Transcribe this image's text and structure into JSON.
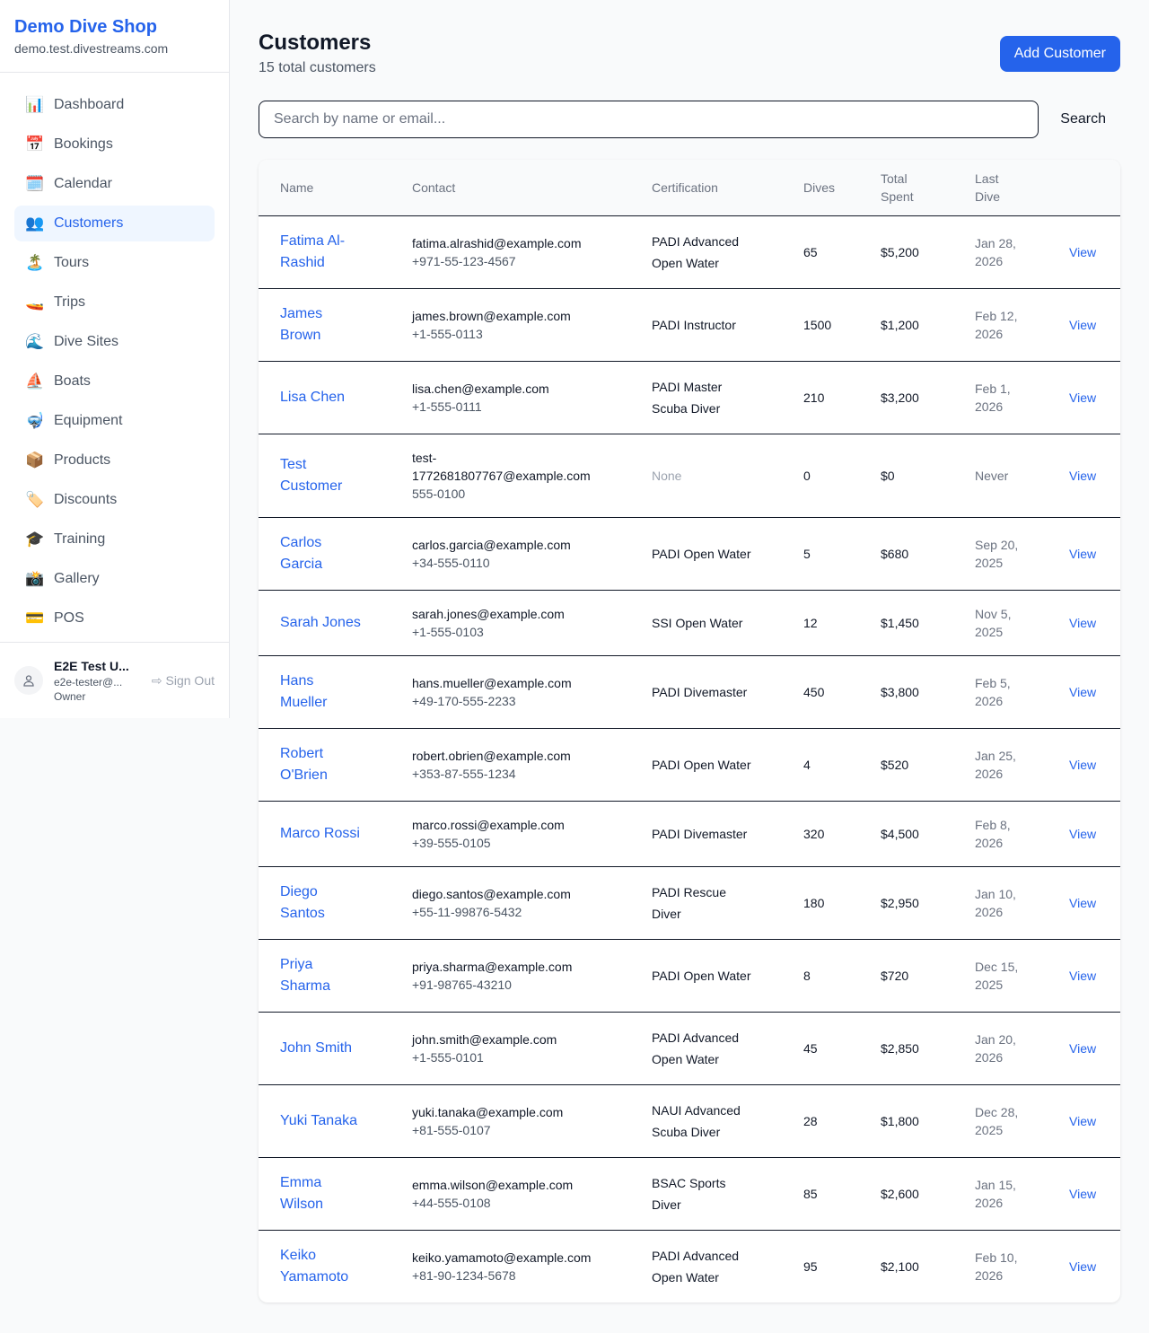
{
  "sidebar": {
    "brand": "Demo Dive Shop",
    "domain": "demo.test.divestreams.com",
    "items": [
      {
        "label": "Dashboard",
        "icon": "📊",
        "icon_name": "bar-chart-icon"
      },
      {
        "label": "Bookings",
        "icon": "📅",
        "icon_name": "calendar-date-icon"
      },
      {
        "label": "Calendar",
        "icon": "🗓️",
        "icon_name": "calendar-icon"
      },
      {
        "label": "Customers",
        "icon": "👥",
        "icon_name": "users-icon",
        "active": true
      },
      {
        "label": "Tours",
        "icon": "🏝️",
        "icon_name": "island-icon"
      },
      {
        "label": "Trips",
        "icon": "🚤",
        "icon_name": "boat-icon"
      },
      {
        "label": "Dive Sites",
        "icon": "🌊",
        "icon_name": "wave-icon"
      },
      {
        "label": "Boats",
        "icon": "⛵",
        "icon_name": "sailboat-icon"
      },
      {
        "label": "Equipment",
        "icon": "🤿",
        "icon_name": "diving-mask-icon"
      },
      {
        "label": "Products",
        "icon": "📦",
        "icon_name": "package-icon"
      },
      {
        "label": "Discounts",
        "icon": "🏷️",
        "icon_name": "tag-icon"
      },
      {
        "label": "Training",
        "icon": "🎓",
        "icon_name": "graduation-cap-icon"
      },
      {
        "label": "Gallery",
        "icon": "📸",
        "icon_name": "camera-icon"
      },
      {
        "label": "POS",
        "icon": "💳",
        "icon_name": "credit-card-icon"
      }
    ],
    "user": {
      "name": "E2E Test U...",
      "email": "e2e-tester@...",
      "role": "Owner",
      "sign_out": "Sign Out"
    }
  },
  "page": {
    "title": "Customers",
    "subtitle": "15 total customers",
    "add_button": "Add Customer",
    "search_placeholder": "Search by name or email...",
    "search_button": "Search"
  },
  "table": {
    "headers": [
      "Name",
      "Contact",
      "Certification",
      "Dives",
      "Total Spent",
      "Last Dive"
    ],
    "view_label": "View",
    "rows": [
      {
        "name": "Fatima Al-Rashid",
        "email": "fatima.alrashid@example.com",
        "phone": "+971-55-123-4567",
        "cert": "PADI Advanced Open Water",
        "dives": "65",
        "spent": "$5,200",
        "last": "Jan 28, 2026"
      },
      {
        "name": "James Brown",
        "email": "james.brown@example.com",
        "phone": "+1-555-0113",
        "cert": "PADI Instructor",
        "dives": "1500",
        "spent": "$1,200",
        "last": "Feb 12, 2026"
      },
      {
        "name": "Lisa Chen",
        "email": "lisa.chen@example.com",
        "phone": "+1-555-0111",
        "cert": "PADI Master Scuba Diver",
        "dives": "210",
        "spent": "$3,200",
        "last": "Feb 1, 2026"
      },
      {
        "name": "Test Customer",
        "email": "test-1772681807767@example.com",
        "phone": "555-0100",
        "cert": "None",
        "dives": "0",
        "spent": "$0",
        "last": "Never"
      },
      {
        "name": "Carlos Garcia",
        "email": "carlos.garcia@example.com",
        "phone": "+34-555-0110",
        "cert": "PADI Open Water",
        "dives": "5",
        "spent": "$680",
        "last": "Sep 20, 2025"
      },
      {
        "name": "Sarah Jones",
        "email": "sarah.jones@example.com",
        "phone": "+1-555-0103",
        "cert": "SSI Open Water",
        "dives": "12",
        "spent": "$1,450",
        "last": "Nov 5, 2025"
      },
      {
        "name": "Hans Mueller",
        "email": "hans.mueller@example.com",
        "phone": "+49-170-555-2233",
        "cert": "PADI Divemaster",
        "dives": "450",
        "spent": "$3,800",
        "last": "Feb 5, 2026"
      },
      {
        "name": "Robert O'Brien",
        "email": "robert.obrien@example.com",
        "phone": "+353-87-555-1234",
        "cert": "PADI Open Water",
        "dives": "4",
        "spent": "$520",
        "last": "Jan 25, 2026"
      },
      {
        "name": "Marco Rossi",
        "email": "marco.rossi@example.com",
        "phone": "+39-555-0105",
        "cert": "PADI Divemaster",
        "dives": "320",
        "spent": "$4,500",
        "last": "Feb 8, 2026"
      },
      {
        "name": "Diego Santos",
        "email": "diego.santos@example.com",
        "phone": "+55-11-99876-5432",
        "cert": "PADI Rescue Diver",
        "dives": "180",
        "spent": "$2,950",
        "last": "Jan 10, 2026"
      },
      {
        "name": "Priya Sharma",
        "email": "priya.sharma@example.com",
        "phone": "+91-98765-43210",
        "cert": "PADI Open Water",
        "dives": "8",
        "spent": "$720",
        "last": "Dec 15, 2025"
      },
      {
        "name": "John Smith",
        "email": "john.smith@example.com",
        "phone": "+1-555-0101",
        "cert": "PADI Advanced Open Water",
        "dives": "45",
        "spent": "$2,850",
        "last": "Jan 20, 2026"
      },
      {
        "name": "Yuki Tanaka",
        "email": "yuki.tanaka@example.com",
        "phone": "+81-555-0107",
        "cert": "NAUI Advanced Scuba Diver",
        "dives": "28",
        "spent": "$1,800",
        "last": "Dec 28, 2025"
      },
      {
        "name": "Emma Wilson",
        "email": "emma.wilson@example.com",
        "phone": "+44-555-0108",
        "cert": "BSAC Sports Diver",
        "dives": "85",
        "spent": "$2,600",
        "last": "Jan 15, 2026"
      },
      {
        "name": "Keiko Yamamoto",
        "email": "keiko.yamamoto@example.com",
        "phone": "+81-90-1234-5678",
        "cert": "PADI Advanced Open Water",
        "dives": "95",
        "spent": "$2,100",
        "last": "Feb 10, 2026"
      }
    ]
  }
}
